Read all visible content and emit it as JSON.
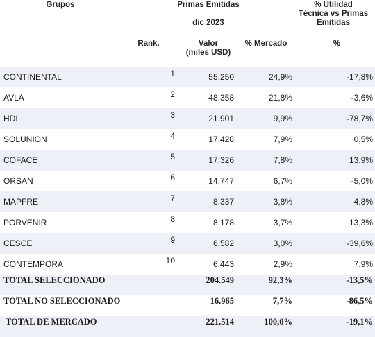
{
  "headers": {
    "grupos": "Grupos",
    "primas": "Primas Emitidas",
    "periodo": "dic 2023",
    "utilidad_l1": "% Utilidad",
    "utilidad_l2": "Técnica vs Primas",
    "utilidad_l3": "Emitidas",
    "rank": "Rank.",
    "valor_l1": "Valor",
    "valor_l2": "(miles USD)",
    "mercado": "% Mercado",
    "pct": "%"
  },
  "rows": [
    {
      "name": "CONTINENTAL",
      "rank": "1",
      "valor": "55.250",
      "mercado": "24,9%",
      "utilidad": "-17,8%"
    },
    {
      "name": "AVLA",
      "rank": "2",
      "valor": "48.358",
      "mercado": "21,8%",
      "utilidad": "-3,6%"
    },
    {
      "name": "HDI",
      "rank": "3",
      "valor": "21.901",
      "mercado": "9,9%",
      "utilidad": "-78,7%"
    },
    {
      "name": "SOLUNION",
      "rank": "4",
      "valor": "17.428",
      "mercado": "7,9%",
      "utilidad": "0,5%"
    },
    {
      "name": "COFACE",
      "rank": "5",
      "valor": "17.326",
      "mercado": "7,8%",
      "utilidad": "13,9%"
    },
    {
      "name": "ORSAN",
      "rank": "6",
      "valor": "14.747",
      "mercado": "6,7%",
      "utilidad": "-5,0%"
    },
    {
      "name": "MAPFRE",
      "rank": "7",
      "valor": "8.337",
      "mercado": "3,8%",
      "utilidad": "4,8%"
    },
    {
      "name": "PORVENIR",
      "rank": "8",
      "valor": "8.178",
      "mercado": "3,7%",
      "utilidad": "13,3%"
    },
    {
      "name": "CESCE",
      "rank": "9",
      "valor": "6.582",
      "mercado": "3,0%",
      "utilidad": "-39,6%"
    },
    {
      "name": "CONTEMPORA",
      "rank": "10",
      "valor": "6.443",
      "mercado": "2,9%",
      "utilidad": "7,9%"
    }
  ],
  "totals": [
    {
      "name": "TOTAL SELECCIONADO",
      "valor": "204.549",
      "mercado": "92,3%",
      "utilidad": "-13,5%"
    },
    {
      "name": "TOTAL NO SELECCIONADO",
      "valor": "16.965",
      "mercado": "7,7%",
      "utilidad": "-86,5%"
    },
    {
      "name": "TOTAL DE MERCADO",
      "valor": "221.514",
      "mercado": "100,0%",
      "utilidad": "-19,1%"
    }
  ]
}
